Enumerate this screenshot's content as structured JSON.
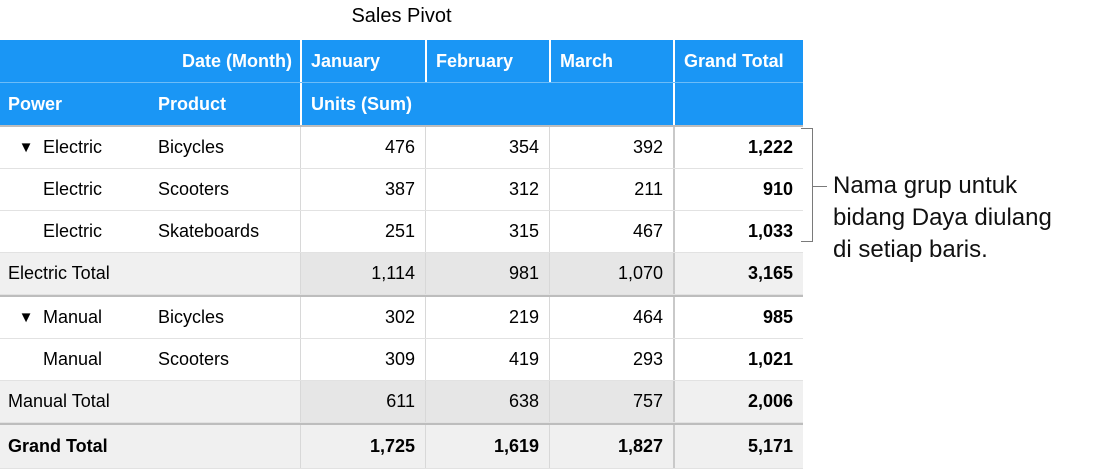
{
  "title": "Sales Pivot",
  "header": {
    "row1": [
      "",
      "Date (Month)",
      "January",
      "February",
      "March",
      "Grand Total"
    ],
    "row2": [
      "Power",
      "Product",
      "Units (Sum)",
      "",
      "",
      ""
    ]
  },
  "groups": [
    {
      "rows": [
        {
          "power": "Electric",
          "product": "Bicycles",
          "jan": "476",
          "feb": "354",
          "mar": "392",
          "total": "1,222"
        },
        {
          "power": "Electric",
          "product": "Scooters",
          "jan": "387",
          "feb": "312",
          "mar": "211",
          "total": "910"
        },
        {
          "power": "Electric",
          "product": "Skateboards",
          "jan": "251",
          "feb": "315",
          "mar": "467",
          "total": "1,033"
        }
      ],
      "total": {
        "label": "Electric Total",
        "jan": "1,114",
        "feb": "981",
        "mar": "1,070",
        "total": "3,165"
      }
    },
    {
      "rows": [
        {
          "power": "Manual",
          "product": "Bicycles",
          "jan": "302",
          "feb": "219",
          "mar": "464",
          "total": "985"
        },
        {
          "power": "Manual",
          "product": "Scooters",
          "jan": "309",
          "feb": "419",
          "mar": "293",
          "total": "1,021"
        }
      ],
      "total": {
        "label": "Manual Total",
        "jan": "611",
        "feb": "638",
        "mar": "757",
        "total": "2,006"
      }
    }
  ],
  "grand_total": {
    "label": "Grand Total",
    "jan": "1,725",
    "feb": "1,619",
    "mar": "1,827",
    "total": "5,171"
  },
  "collapse_glyph": "▼",
  "annotation": {
    "line1": "Nama grup untuk",
    "line2": "bidang Daya diulang",
    "line3": "di setiap baris."
  }
}
